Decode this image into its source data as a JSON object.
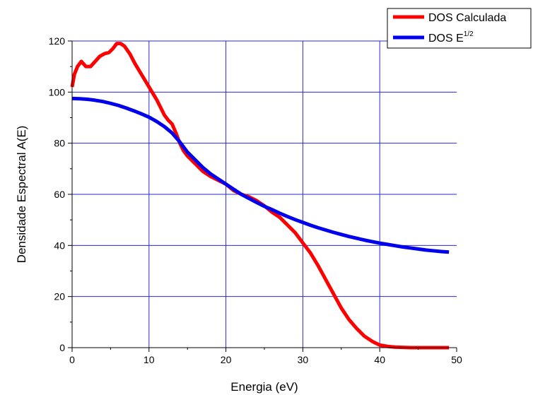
{
  "chart_data": {
    "type": "line",
    "xlabel": "Energia (eV)",
    "ylabel": "Densidade Espectral A(E)",
    "xlim": [
      0,
      50
    ],
    "ylim": [
      0,
      120
    ],
    "xticks": [
      0,
      10,
      20,
      30,
      40,
      50
    ],
    "yticks": [
      0,
      20,
      40,
      60,
      80,
      100,
      120
    ],
    "grid": true,
    "grid_color": "#2b2bcc",
    "legend_position": "top-right",
    "series": [
      {
        "name": "DOS Calculada",
        "legend_main": "DOS Calculada",
        "legend_sup": "",
        "color": "#ff0000",
        "x": [
          0,
          0.3,
          0.7,
          1.2,
          1.8,
          2.4,
          3,
          3.6,
          4.2,
          4.8,
          5.3,
          5.8,
          6.3,
          6.8,
          7.5,
          8.2,
          9,
          10,
          11,
          12,
          12.5,
          13,
          13.5,
          14,
          14.5,
          15,
          16,
          17,
          18,
          19,
          20,
          21,
          22,
          23,
          24,
          25,
          26,
          27,
          28,
          29,
          30,
          31,
          32,
          33,
          34,
          35,
          36,
          37,
          38,
          39,
          40,
          41,
          42,
          43,
          44,
          45,
          46,
          47,
          48,
          49
        ],
        "y": [
          102,
          107,
          110,
          112,
          110,
          110,
          112,
          114,
          115,
          115.5,
          117,
          119,
          119,
          118,
          115,
          111,
          107,
          102,
          97,
          91,
          89,
          87.5,
          84,
          80,
          77,
          75,
          72,
          69,
          67,
          65.5,
          64,
          61.5,
          60,
          59,
          57.5,
          55.5,
          53,
          51,
          48,
          45,
          41,
          37,
          32,
          26.5,
          21,
          15.5,
          11,
          7.5,
          4.5,
          2.5,
          1,
          0.5,
          0.2,
          0.1,
          0,
          0,
          0,
          0,
          0,
          0
        ]
      },
      {
        "name": "DOS E^1/2",
        "legend_main": "DOS E",
        "legend_sup": "1/2",
        "color": "#0000ee",
        "x": [
          0,
          1,
          2,
          3,
          4,
          5,
          6,
          7,
          8,
          9,
          10,
          11,
          12,
          13,
          14,
          15,
          16,
          17,
          18,
          19,
          20,
          21,
          22,
          23,
          24,
          25,
          26,
          27,
          28,
          29,
          30,
          31,
          32,
          33,
          34,
          35,
          36,
          37,
          38,
          39,
          40,
          41,
          42,
          43,
          44,
          45,
          46,
          47,
          48,
          49
        ],
        "y": [
          97.5,
          97.4,
          97.2,
          96.8,
          96.3,
          95.6,
          94.8,
          93.8,
          92.7,
          91.5,
          90.2,
          88.5,
          86.5,
          84,
          80.5,
          76.5,
          73.5,
          70.5,
          68,
          66,
          64,
          62,
          60,
          58.4,
          56.8,
          55.3,
          54,
          52.6,
          51.3,
          50.1,
          49,
          47.9,
          46.9,
          46,
          45.1,
          44.3,
          43.5,
          42.8,
          42.1,
          41.5,
          40.9,
          40.4,
          39.9,
          39.4,
          39,
          38.6,
          38.2,
          37.9,
          37.6,
          37.4
        ]
      }
    ]
  }
}
